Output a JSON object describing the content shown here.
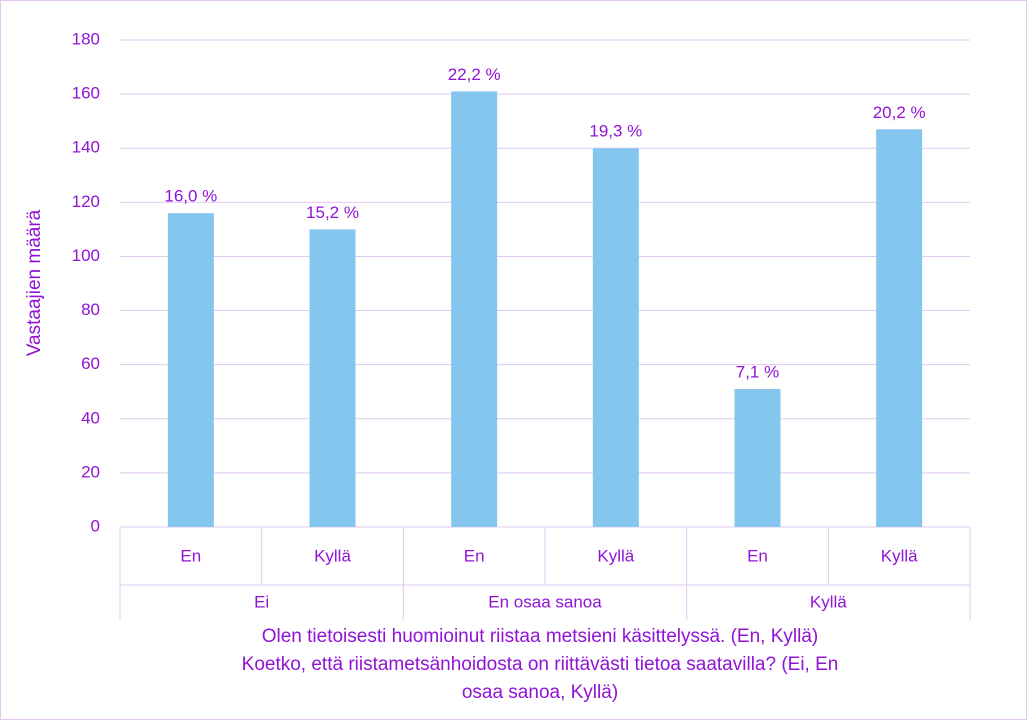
{
  "chart_data": {
    "type": "bar",
    "y_label": "Vastaajien määrä",
    "x_label_lines": [
      "Olen tietoisesti huomioinut riistaa metsieni käsittelyssä. (En, Kyllä)",
      "Koetko, että riistametsänhoidosta on riittävästi tietoa saatavilla? (Ei, En",
      "osaa sanoa, Kyllä)"
    ],
    "categories": [
      "En",
      "Kyllä",
      "En",
      "Kyllä",
      "En",
      "Kyllä"
    ],
    "groups": [
      "Ei",
      "En osaa sanoa",
      "Kyllä"
    ],
    "values": [
      116,
      110,
      161,
      140,
      51,
      147
    ],
    "percent_labels": [
      "16,0 %",
      "15,2 %",
      "22,2 %",
      "19,3 %",
      "7,1 %",
      "20,2 %"
    ],
    "color": "#85c6ee",
    "ylim": [
      0,
      180
    ],
    "yticks": [
      0,
      20,
      40,
      60,
      80,
      100,
      120,
      140,
      160,
      180
    ],
    "grid": true
  }
}
